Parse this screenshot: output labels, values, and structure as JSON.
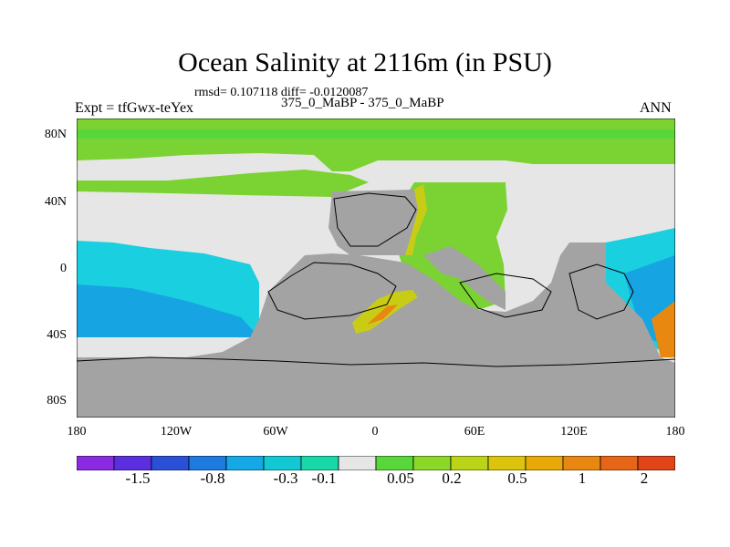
{
  "title": "Ocean Salinity at 2116m (in PSU)",
  "stats": "rmsd= 0.107118 diff= -0.0120087",
  "left_label": "Expt = tfGwx-teYex",
  "center_label": "375_0_MaBP - 375_0_MaBP",
  "right_label": "ANN",
  "x_ticks": [
    "180",
    "120W",
    "60W",
    "0",
    "60E",
    "120E",
    "180"
  ],
  "y_ticks": [
    "80N",
    "40N",
    "0",
    "40S",
    "80S"
  ],
  "colorbar": {
    "labels": [
      "-1.5",
      "-0.8",
      "-0.3",
      "-0.1",
      "0.05",
      "0.2",
      "0.5",
      "1",
      "2"
    ],
    "colors": [
      "#8a2be2",
      "#5a2fe0",
      "#2a50d8",
      "#1c7ae0",
      "#14a8e6",
      "#12c8d2",
      "#19d8a8",
      "#e6e6e6",
      "#58d63a",
      "#8cd828",
      "#bcd418",
      "#dcc40c",
      "#e8a808",
      "#e88810",
      "#e66618",
      "#e04418"
    ]
  },
  "palette": {
    "land": "#a3a3a3",
    "near_zero": "#e6e6e6",
    "green": "#7ad332",
    "light_green": "#58d63a",
    "yellow": "#c9cc14",
    "cyan": "#19cfe0",
    "teal": "#16b8d6",
    "blue": "#16a4e2",
    "orange": "#e88810",
    "red": "#e04418"
  }
}
